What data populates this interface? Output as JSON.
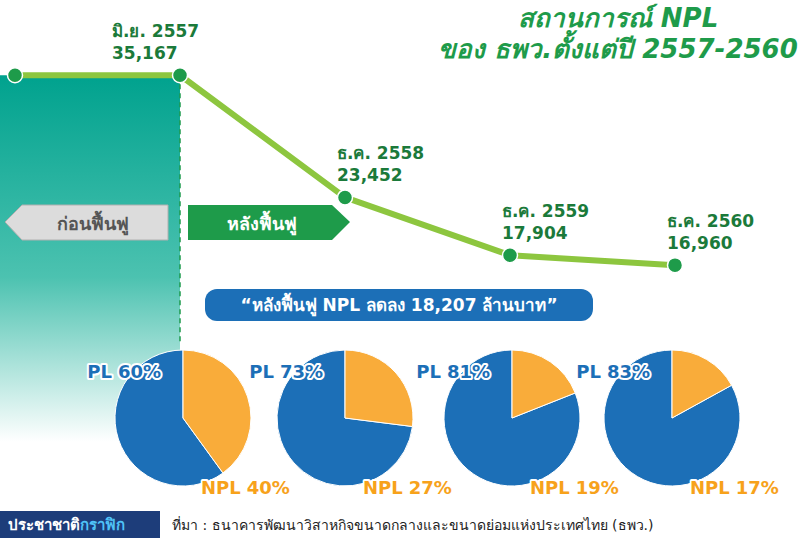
{
  "chart_data": [
    {
      "type": "line",
      "title": "สถานการณ์ NPL",
      "subtitle": "ของ ธพว.ตั้งแต่ปี 2557-2560",
      "categories": [
        null,
        "มิ.ย. 2557",
        "ธ.ค. 2558",
        "ธ.ค. 2559",
        "ธ.ค. 2560"
      ],
      "values": [
        35167,
        35167,
        23452,
        17904,
        16960
      ],
      "value_labels": [
        null,
        "35,167",
        "23,452",
        "17,904",
        "16,960"
      ],
      "ylim": [
        0,
        42000
      ],
      "yticks": [],
      "tick_labels": false,
      "grid": false,
      "data_labels": true,
      "color": "#8dc63f",
      "marker": "circle",
      "annotations": {
        "before": "ก่อนฟื้นฟู",
        "after": "หลังฟื้นฟู",
        "callout": "“หลังฟื้นฟู NPL ลดลง 18,207 ล้านบาท”"
      },
      "credit": [
        "ประชาชาติ",
        "กราฟิก"
      ],
      "source": "ที่มา : ธนาคารพัฒนาวิสาหกิจขนาดกลางและขนาดย่อมแห่งประเทศไทย (ธพว.)"
    },
    {
      "type": "pie",
      "categories": [
        "PL",
        "NPL"
      ],
      "values": [
        60,
        40
      ],
      "value_labels": [
        "60%",
        "40%"
      ],
      "colors": [
        "#1c6fb7",
        "#f9ac3a"
      ],
      "data_labels": true
    },
    {
      "type": "pie",
      "categories": [
        "PL",
        "NPL"
      ],
      "values": [
        73,
        27
      ],
      "value_labels": [
        "73%",
        "27%"
      ],
      "colors": [
        "#1c6fb7",
        "#f9ac3a"
      ],
      "data_labels": true
    },
    {
      "type": "pie",
      "categories": [
        "PL",
        "NPL"
      ],
      "values": [
        81,
        19
      ],
      "value_labels": [
        "81%",
        "19%"
      ],
      "colors": [
        "#1c6fb7",
        "#f9ac3a"
      ],
      "data_labels": true
    },
    {
      "type": "pie",
      "categories": [
        "PL",
        "NPL"
      ],
      "values": [
        83,
        17
      ],
      "value_labels": [
        "83%",
        "17%"
      ],
      "colors": [
        "#1c6fb7",
        "#f9ac3a"
      ],
      "data_labels": true
    }
  ]
}
